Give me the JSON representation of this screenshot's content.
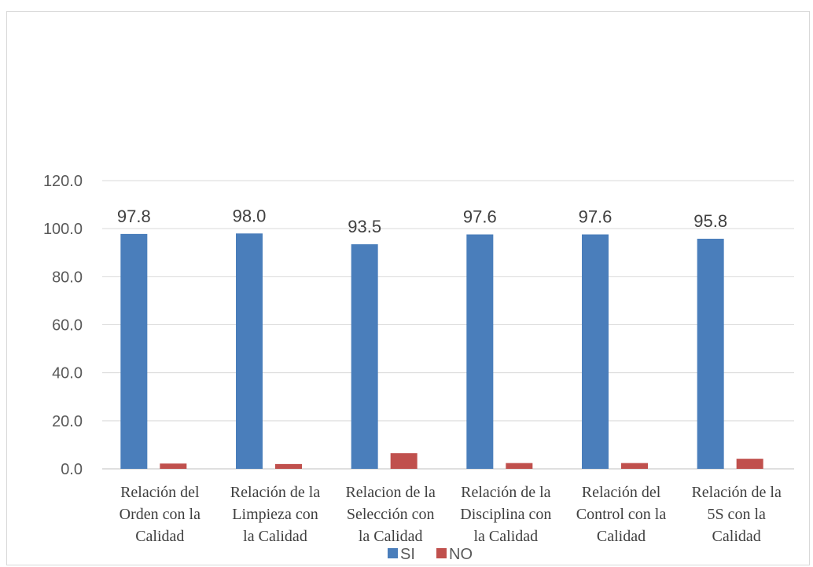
{
  "chart_data": {
    "type": "bar",
    "categories": [
      [
        "Relación del",
        "Orden con la",
        "Calidad"
      ],
      [
        "Relación  de la",
        "Limpieza con",
        "la Calidad"
      ],
      [
        "Relacion de la",
        "Selección con",
        "la Calidad"
      ],
      [
        "Relación de la",
        "Disciplina con",
        "la Calidad"
      ],
      [
        "Relación del",
        "Control con la",
        "Calidad"
      ],
      [
        "Relación de la",
        "5S con la",
        "Calidad"
      ]
    ],
    "series": [
      {
        "name": "SI",
        "color": "#4a7ebb",
        "values": [
          97.8,
          98.0,
          93.5,
          97.6,
          97.6,
          95.8
        ],
        "labels": [
          "97.8",
          "98.0",
          "93.5",
          "97.6",
          "97.6",
          "95.8"
        ]
      },
      {
        "name": "NO",
        "color": "#c0504d",
        "values": [
          2.2,
          2.0,
          6.5,
          2.4,
          2.4,
          4.2
        ]
      }
    ],
    "yticks": [
      "0.0",
      "20.0",
      "40.0",
      "60.0",
      "80.0",
      "100.0",
      "120.0"
    ],
    "ylim": [
      0,
      120
    ],
    "grid": true,
    "legend": "bottom"
  }
}
